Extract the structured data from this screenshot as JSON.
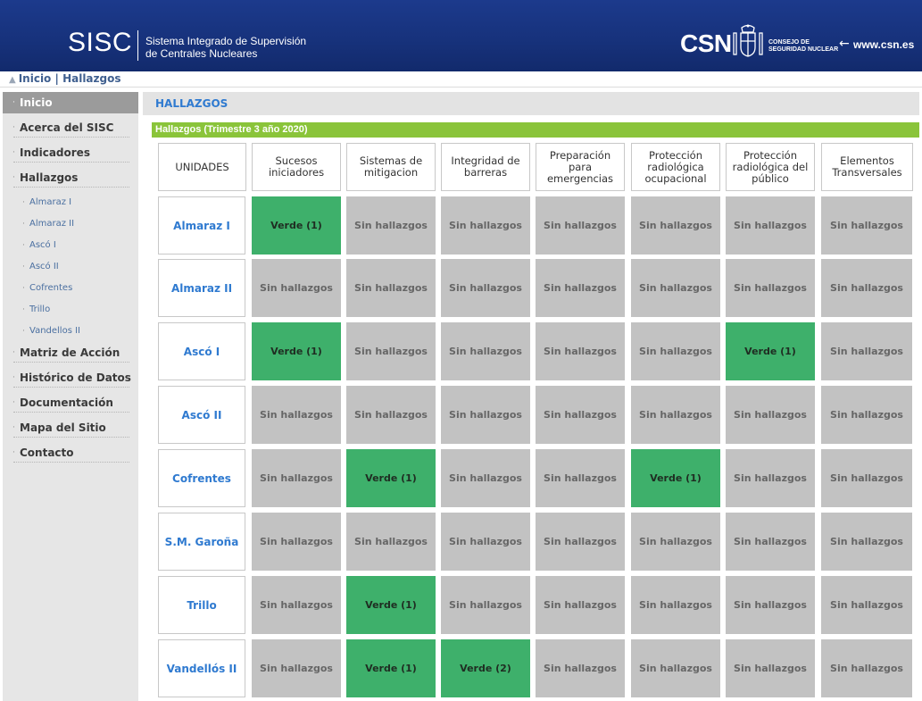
{
  "header": {
    "logo": "SISC",
    "subtitle_line1": "Sistema Integrado de Supervisión",
    "subtitle_line2": "de Centrales Nucleares",
    "csn_logo": "CSN",
    "csn_council_line1": "CONSEJO DE",
    "csn_council_line2": "SEGURIDAD NUCLEAR",
    "csn_arrow": "←",
    "csn_url": "www.csn.es",
    "colors": {
      "background": "#17327c",
      "text": "#ffffff"
    }
  },
  "breadcrumb": {
    "home_icon": "home-icon",
    "items": [
      "Inicio",
      "Hallazgos"
    ],
    "separator": "|"
  },
  "sidebar": {
    "items": [
      {
        "label": "Inicio",
        "active": true
      },
      {
        "label": "Acerca del SISC"
      },
      {
        "label": "Indicadores"
      },
      {
        "label": "Hallazgos"
      },
      {
        "label": "Almaraz I",
        "sub": true
      },
      {
        "label": "Almaraz II",
        "sub": true
      },
      {
        "label": "Ascó I",
        "sub": true
      },
      {
        "label": "Ascó II",
        "sub": true
      },
      {
        "label": "Cofrentes",
        "sub": true
      },
      {
        "label": "Trillo",
        "sub": true
      },
      {
        "label": "Vandellos II",
        "sub": true
      },
      {
        "label": "Matriz de Acción"
      },
      {
        "label": "Histórico de Datos"
      },
      {
        "label": "Documentación"
      },
      {
        "label": "Mapa del Sitio"
      },
      {
        "label": "Contacto"
      }
    ],
    "bullet": "·"
  },
  "main": {
    "heading": "HALLAZGOS",
    "period": "Hallazgos (Trimestre 3 año 2020)",
    "accent_color": "#8ac43a",
    "columns": [
      "UNIDADES",
      "Sucesos iniciadores",
      "Sistemas de mitigacion",
      "Integridad de barreras",
      "Preparación para emergencias",
      "Protección radiológica ocupacional",
      "Protección radiológica del público",
      "Elementos Transversales"
    ],
    "status_colors": {
      "Sin hallazgos": "#c2c2c2",
      "Verde": "#3eb06b"
    },
    "rows": [
      {
        "unit": "Almaraz I",
        "values": [
          "Verde (1)",
          "Sin hallazgos",
          "Sin hallazgos",
          "Sin hallazgos",
          "Sin hallazgos",
          "Sin hallazgos",
          "Sin hallazgos"
        ]
      },
      {
        "unit": "Almaraz II",
        "values": [
          "Sin hallazgos",
          "Sin hallazgos",
          "Sin hallazgos",
          "Sin hallazgos",
          "Sin hallazgos",
          "Sin hallazgos",
          "Sin hallazgos"
        ]
      },
      {
        "unit": "Ascó I",
        "values": [
          "Verde (1)",
          "Sin hallazgos",
          "Sin hallazgos",
          "Sin hallazgos",
          "Sin hallazgos",
          "Verde (1)",
          "Sin hallazgos"
        ]
      },
      {
        "unit": "Ascó II",
        "values": [
          "Sin hallazgos",
          "Sin hallazgos",
          "Sin hallazgos",
          "Sin hallazgos",
          "Sin hallazgos",
          "Sin hallazgos",
          "Sin hallazgos"
        ]
      },
      {
        "unit": "Cofrentes",
        "values": [
          "Sin hallazgos",
          "Verde (1)",
          "Sin hallazgos",
          "Sin hallazgos",
          "Verde (1)",
          "Sin hallazgos",
          "Sin hallazgos"
        ]
      },
      {
        "unit": "S.M. Garoña",
        "values": [
          "Sin hallazgos",
          "Sin hallazgos",
          "Sin hallazgos",
          "Sin hallazgos",
          "Sin hallazgos",
          "Sin hallazgos",
          "Sin hallazgos"
        ]
      },
      {
        "unit": "Trillo",
        "values": [
          "Sin hallazgos",
          "Verde (1)",
          "Sin hallazgos",
          "Sin hallazgos",
          "Sin hallazgos",
          "Sin hallazgos",
          "Sin hallazgos"
        ]
      },
      {
        "unit": "Vandellós II",
        "values": [
          "Sin hallazgos",
          "Verde (1)",
          "Verde (2)",
          "Sin hallazgos",
          "Sin hallazgos",
          "Sin hallazgos",
          "Sin hallazgos"
        ]
      }
    ]
  }
}
